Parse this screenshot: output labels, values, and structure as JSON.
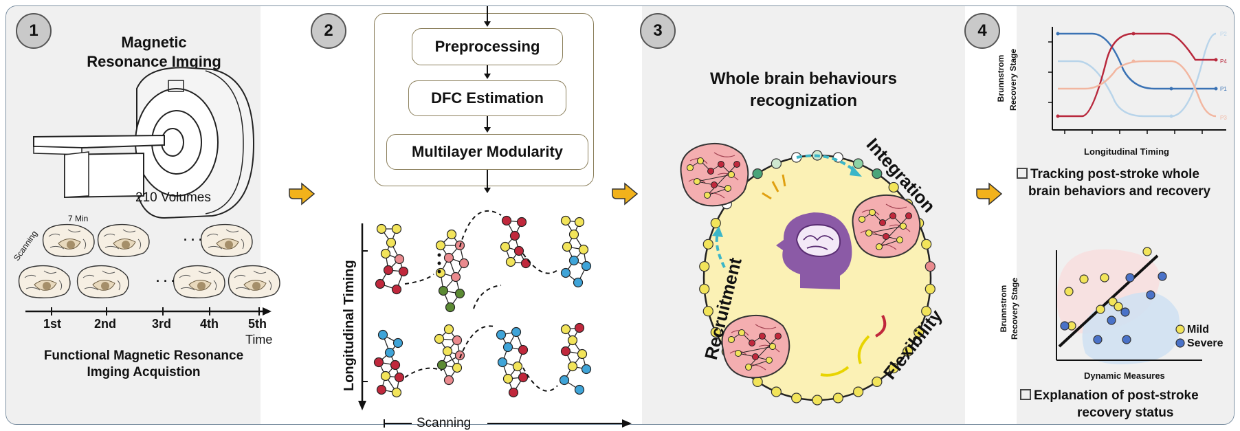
{
  "steps": [
    "1",
    "2",
    "3",
    "4"
  ],
  "panel1": {
    "title_line1": "Magnetic",
    "title_line2": "Resonance Imging",
    "volumes": "210 Volumes",
    "duration": "7 Min",
    "scanning": "Scanning",
    "ellipsis": "· · ·",
    "timeline": [
      "1st",
      "2nd",
      "3rd",
      "4th",
      "5th"
    ],
    "time_label": "Time",
    "caption_line1": "Functional Magnetic Resonance",
    "caption_line2": "Imging Acquistion"
  },
  "panel2": {
    "steps": [
      "Preprocessing",
      "DFC Estimation",
      "Multilayer Modularity"
    ],
    "y_axis": "Longitudinal Timing",
    "x_axis": "Scanning"
  },
  "panel3": {
    "title_line1": "Whole brain behaviours",
    "title_line2": "recognization",
    "integration": "Integration",
    "recruitment": "Recruitment",
    "flexibility": "Flexibility"
  },
  "panel4": {
    "chart_top": {
      "y_label_line1": "Brunnstrom",
      "y_label_line2": "Recovery Stage",
      "x_label": "Longitudinal Timing",
      "series_labels": [
        "P2",
        "P4",
        "P1",
        "P3"
      ]
    },
    "caption1_line1": "Tracking post-stroke whole",
    "caption1_line2": "brain behaviors and recovery",
    "chart_bottom": {
      "y_label_line1": "Brunnstrom",
      "y_label_line2": "Recovery Stage",
      "x_label": "Dynamic Measures",
      "legend": [
        "Mild",
        "Severe"
      ]
    },
    "caption2_line1": "Explanation of post-stroke",
    "caption2_line2": "recovery status"
  },
  "colors": {
    "panel_bg": "#efefef",
    "arrow": "#f2b21b",
    "brain_pink": "#f4aeb0",
    "ring_fill": "#fbf1b5",
    "head": "#8b5aa6",
    "node_yellow": "#f2e45a",
    "node_red": "#c0283c",
    "node_pink": "#ea8a8e",
    "node_blue": "#3fa4d8",
    "node_green": "#5b8a33"
  }
}
